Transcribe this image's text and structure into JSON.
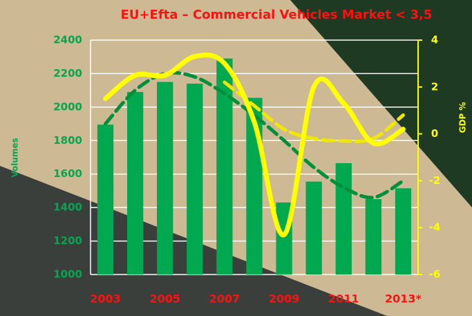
{
  "chart_data": {
    "type": "bar-line",
    "title": "EU+Efta – Commercial Vehicles Market < 3,5",
    "y_label": "Volumes",
    "y2_label": "GDP %",
    "categories": [
      "2003",
      null,
      "2005",
      null,
      "2007",
      null,
      "2009",
      null,
      "2011",
      null,
      "2013*"
    ],
    "series": [
      {
        "type": "bar",
        "color": "#00a850",
        "values": [
          1895,
          2090,
          2150,
          2140,
          2290,
          2055,
          1430,
          1555,
          1665,
          1450,
          1515
        ]
      },
      {
        "type": "line",
        "color": "#00903c",
        "dashed": true,
        "values": [
          1900,
          2100,
          2200,
          2180,
          2080,
          1950,
          1800,
          1640,
          1520,
          1460,
          1560
        ]
      },
      {
        "type": "line",
        "color": "#f0e800",
        "dashed": true,
        "axis": "y2",
        "values": [
          null,
          null,
          null,
          null,
          2.2,
          1.2,
          0.2,
          -0.2,
          -0.3,
          -0.2,
          0.8
        ]
      },
      {
        "type": "line",
        "color": "#ffff00",
        "axis": "y2",
        "values": [
          1.5,
          2.5,
          2.5,
          3.3,
          3.0,
          0.5,
          -4.3,
          2.0,
          1.3,
          -0.4,
          0.2
        ]
      }
    ],
    "ylim": [
      1000,
      2400
    ],
    "yticks": [
      1000,
      1200,
      1400,
      1600,
      1800,
      2000,
      2200,
      2400
    ],
    "y2lim": [
      -6,
      4
    ],
    "y2ticks": [
      -6,
      -4,
      -2,
      0,
      2,
      4
    ],
    "grid": true
  }
}
